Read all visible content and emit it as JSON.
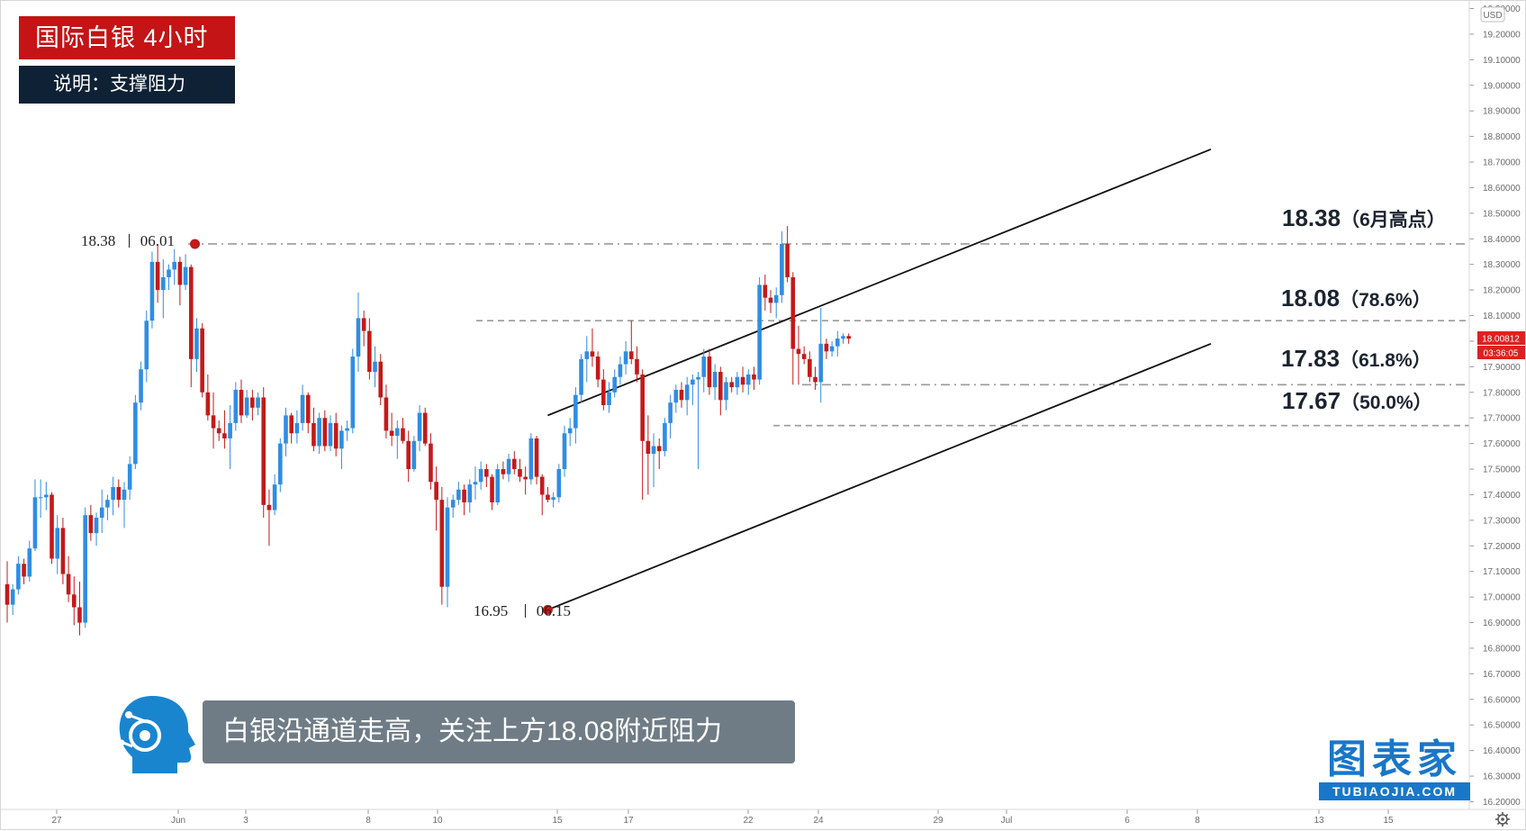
{
  "header": {
    "title": "国际白银  4小时",
    "subtitle": "说明：支撑阻力"
  },
  "caption": "白银沿通道走高，关注上方18.08附近阻力",
  "brand": {
    "cn": "图表家",
    "en": "TUBIAOJIA.COM",
    "color": "#1877c9"
  },
  "annotations": {
    "high": {
      "value": "18.38",
      "note": "（6月高点）"
    },
    "fib786": {
      "value": "18.08",
      "note": "（78.6%）"
    },
    "fib618": {
      "value": "17.83",
      "note": "（61.8%）"
    },
    "fib50": {
      "value": "17.67",
      "note": "（50.0%）"
    },
    "june_high_point": {
      "price": "18.38",
      "date": "06.01"
    },
    "june_low_point": {
      "price": "16.95",
      "date": "06.15"
    }
  },
  "price_axis": {
    "currency": "USD",
    "ticks": [
      "19.30000",
      "19.20000",
      "19.10000",
      "19.00000",
      "18.90000",
      "18.80000",
      "18.70000",
      "18.60000",
      "18.50000",
      "18.40000",
      "18.30000",
      "18.20000",
      "18.10000",
      "18.00000",
      "17.90000",
      "17.80000",
      "17.70000",
      "17.60000",
      "17.50000",
      "17.40000",
      "17.30000",
      "17.20000",
      "17.10000",
      "17.00000",
      "16.90000",
      "16.80000",
      "16.70000",
      "16.60000",
      "16.50000",
      "16.40000",
      "16.30000",
      "16.20000"
    ],
    "current_price": "18.00812",
    "countdown": "03:36:05"
  },
  "time_axis": {
    "ticks": [
      "27",
      "Jun",
      "3",
      "8",
      "10",
      "15",
      "17",
      "22",
      "24",
      "29",
      "Jul",
      "6",
      "8",
      "13",
      "15"
    ]
  },
  "colors": {
    "up": "#2f8de4",
    "down": "#c4191a",
    "current": "#e02020"
  },
  "chart_data": {
    "type": "candlestick",
    "title": "国际白银  4小时",
    "ylim": [
      16.17,
      19.33
    ],
    "levels": [
      {
        "label": "18.38（6月高点）",
        "value": 18.38,
        "style": "dash-dot"
      },
      {
        "label": "18.08（78.6%）",
        "value": 18.08,
        "style": "dashed"
      },
      {
        "label": "17.83（61.8%）",
        "value": 17.83,
        "style": "dash-dot"
      },
      {
        "label": "17.67（50.0%）",
        "value": 17.67,
        "style": "dashed"
      }
    ],
    "channel": {
      "lower": [
        {
          "bar": 97,
          "price": 16.95
        },
        {
          "bar": 216,
          "price": 17.99
        }
      ],
      "upper": [
        {
          "bar": 97,
          "price": 17.71
        },
        {
          "bar": 216,
          "price": 18.75
        }
      ]
    },
    "candles": [
      [
        17.05,
        17.14,
        16.9,
        16.97
      ],
      [
        16.97,
        17.05,
        16.93,
        17.03
      ],
      [
        17.03,
        17.16,
        17.01,
        17.13
      ],
      [
        17.13,
        17.15,
        17.05,
        17.08
      ],
      [
        17.08,
        17.22,
        17.06,
        17.19
      ],
      [
        17.19,
        17.46,
        17.18,
        17.39
      ],
      [
        17.39,
        17.46,
        17.31,
        17.39
      ],
      [
        17.39,
        17.45,
        17.34,
        17.4
      ],
      [
        17.4,
        17.41,
        17.13,
        17.15
      ],
      [
        17.15,
        17.32,
        17.09,
        17.27
      ],
      [
        17.27,
        17.31,
        17.05,
        17.09
      ],
      [
        17.09,
        17.16,
        16.98,
        17.01
      ],
      [
        17.01,
        17.08,
        16.89,
        16.96
      ],
      [
        16.96,
        17.06,
        16.85,
        16.9
      ],
      [
        16.9,
        17.35,
        16.88,
        17.32
      ],
      [
        17.32,
        17.36,
        17.22,
        17.25
      ],
      [
        17.25,
        17.33,
        17.2,
        17.31
      ],
      [
        17.31,
        17.42,
        17.25,
        17.35
      ],
      [
        17.35,
        17.4,
        17.3,
        17.38
      ],
      [
        17.38,
        17.47,
        17.32,
        17.43
      ],
      [
        17.43,
        17.46,
        17.35,
        17.38
      ],
      [
        17.38,
        17.45,
        17.27,
        17.42
      ],
      [
        17.42,
        17.55,
        17.38,
        17.52
      ],
      [
        17.52,
        17.79,
        17.5,
        17.76
      ],
      [
        17.76,
        17.92,
        17.73,
        17.89
      ],
      [
        17.89,
        18.12,
        17.84,
        18.08
      ],
      [
        18.08,
        18.35,
        18.05,
        18.31
      ],
      [
        18.31,
        18.38,
        18.15,
        18.2
      ],
      [
        18.2,
        18.32,
        18.09,
        18.25
      ],
      [
        18.25,
        18.3,
        18.2,
        18.28
      ],
      [
        18.28,
        18.36,
        18.22,
        18.31
      ],
      [
        18.31,
        18.33,
        18.14,
        18.22
      ],
      [
        18.22,
        18.34,
        18.2,
        18.29
      ],
      [
        18.29,
        18.3,
        17.82,
        17.93
      ],
      [
        17.93,
        18.09,
        17.88,
        18.05
      ],
      [
        18.05,
        18.07,
        17.78,
        17.8
      ],
      [
        17.8,
        17.87,
        17.69,
        17.71
      ],
      [
        17.71,
        17.8,
        17.58,
        17.66
      ],
      [
        17.66,
        17.69,
        17.61,
        17.64
      ],
      [
        17.64,
        17.73,
        17.58,
        17.62
      ],
      [
        17.62,
        17.75,
        17.5,
        17.68
      ],
      [
        17.68,
        17.84,
        17.65,
        17.81
      ],
      [
        17.81,
        17.85,
        17.68,
        17.71
      ],
      [
        17.71,
        17.81,
        17.7,
        17.78
      ],
      [
        17.78,
        17.81,
        17.69,
        17.74
      ],
      [
        17.74,
        17.8,
        17.71,
        17.78
      ],
      [
        17.78,
        17.82,
        17.31,
        17.36
      ],
      [
        17.36,
        17.42,
        17.2,
        17.34
      ],
      [
        17.34,
        17.48,
        17.32,
        17.44
      ],
      [
        17.44,
        17.62,
        17.41,
        17.6
      ],
      [
        17.6,
        17.74,
        17.55,
        17.71
      ],
      [
        17.71,
        17.72,
        17.6,
        17.64
      ],
      [
        17.64,
        17.73,
        17.6,
        17.68
      ],
      [
        17.68,
        17.83,
        17.65,
        17.79
      ],
      [
        17.79,
        17.8,
        17.64,
        17.68
      ],
      [
        17.68,
        17.74,
        17.57,
        17.59
      ],
      [
        17.59,
        17.72,
        17.56,
        17.7
      ],
      [
        17.7,
        17.73,
        17.57,
        17.59
      ],
      [
        17.59,
        17.71,
        17.57,
        17.68
      ],
      [
        17.68,
        17.72,
        17.55,
        17.58
      ],
      [
        17.58,
        17.67,
        17.5,
        17.65
      ],
      [
        17.65,
        17.69,
        17.61,
        17.66
      ],
      [
        17.66,
        17.97,
        17.64,
        17.94
      ],
      [
        17.94,
        18.19,
        17.88,
        18.09
      ],
      [
        18.09,
        18.12,
        17.98,
        18.04
      ],
      [
        18.04,
        18.09,
        17.85,
        17.88
      ],
      [
        17.88,
        17.98,
        17.82,
        17.92
      ],
      [
        17.92,
        17.95,
        17.75,
        17.78
      ],
      [
        17.78,
        17.83,
        17.62,
        17.65
      ],
      [
        17.65,
        17.72,
        17.59,
        17.63
      ],
      [
        17.63,
        17.69,
        17.54,
        17.66
      ],
      [
        17.66,
        17.7,
        17.6,
        17.61
      ],
      [
        17.61,
        17.65,
        17.45,
        17.5
      ],
      [
        17.5,
        17.63,
        17.49,
        17.61
      ],
      [
        17.61,
        17.75,
        17.57,
        17.72
      ],
      [
        17.72,
        17.74,
        17.59,
        17.6
      ],
      [
        17.6,
        17.64,
        17.42,
        17.45
      ],
      [
        17.45,
        17.51,
        17.26,
        17.38
      ],
      [
        17.38,
        17.43,
        16.97,
        17.04
      ],
      [
        17.04,
        17.39,
        16.96,
        17.35
      ],
      [
        17.35,
        17.4,
        17.31,
        17.38
      ],
      [
        17.38,
        17.45,
        17.36,
        17.42
      ],
      [
        17.42,
        17.44,
        17.32,
        17.37
      ],
      [
        17.37,
        17.46,
        17.33,
        17.44
      ],
      [
        17.44,
        17.51,
        17.38,
        17.45
      ],
      [
        17.45,
        17.53,
        17.42,
        17.5
      ],
      [
        17.5,
        17.52,
        17.43,
        17.47
      ],
      [
        17.47,
        17.48,
        17.34,
        17.37
      ],
      [
        17.37,
        17.52,
        17.36,
        17.5
      ],
      [
        17.5,
        17.53,
        17.46,
        17.48
      ],
      [
        17.48,
        17.56,
        17.45,
        17.54
      ],
      [
        17.54,
        17.57,
        17.48,
        17.5
      ],
      [
        17.5,
        17.54,
        17.45,
        17.47
      ],
      [
        17.47,
        17.51,
        17.4,
        17.46
      ],
      [
        17.46,
        17.64,
        17.44,
        17.62
      ],
      [
        17.62,
        17.63,
        17.44,
        17.47
      ],
      [
        17.47,
        17.48,
        17.32,
        17.4
      ],
      [
        17.4,
        17.43,
        17.37,
        17.38
      ],
      [
        17.38,
        17.41,
        17.35,
        17.39
      ],
      [
        17.39,
        17.52,
        17.37,
        17.5
      ],
      [
        17.5,
        17.67,
        17.47,
        17.64
      ],
      [
        17.64,
        17.7,
        17.59,
        17.66
      ],
      [
        17.66,
        17.82,
        17.6,
        17.79
      ],
      [
        17.79,
        17.95,
        17.76,
        17.93
      ],
      [
        17.93,
        18.02,
        17.84,
        17.96
      ],
      [
        17.96,
        18.05,
        17.9,
        17.94
      ],
      [
        17.94,
        17.96,
        17.82,
        17.85
      ],
      [
        17.85,
        17.89,
        17.73,
        17.75
      ],
      [
        17.75,
        17.84,
        17.72,
        17.8
      ],
      [
        17.8,
        17.89,
        17.78,
        17.86
      ],
      [
        17.86,
        17.94,
        17.83,
        17.91
      ],
      [
        17.91,
        18.0,
        17.87,
        17.96
      ],
      [
        17.96,
        18.08,
        17.91,
        17.93
      ],
      [
        17.93,
        17.98,
        17.84,
        17.87
      ],
      [
        17.87,
        17.89,
        17.38,
        17.61
      ],
      [
        17.61,
        17.71,
        17.4,
        17.56
      ],
      [
        17.56,
        17.64,
        17.43,
        17.59
      ],
      [
        17.59,
        17.62,
        17.5,
        17.57
      ],
      [
        17.57,
        17.7,
        17.55,
        17.68
      ],
      [
        17.68,
        17.79,
        17.62,
        17.76
      ],
      [
        17.76,
        17.83,
        17.72,
        17.81
      ],
      [
        17.81,
        17.84,
        17.74,
        17.77
      ],
      [
        17.77,
        17.86,
        17.71,
        17.83
      ],
      [
        17.83,
        17.87,
        17.75,
        17.85
      ],
      [
        17.85,
        17.88,
        17.5,
        17.86
      ],
      [
        17.86,
        17.97,
        17.8,
        17.94
      ],
      [
        17.94,
        17.97,
        17.79,
        17.82
      ],
      [
        17.82,
        17.91,
        17.77,
        17.88
      ],
      [
        17.88,
        17.9,
        17.71,
        17.77
      ],
      [
        17.77,
        17.86,
        17.73,
        17.84
      ],
      [
        17.84,
        17.86,
        17.8,
        17.82
      ],
      [
        17.82,
        17.88,
        17.79,
        17.86
      ],
      [
        17.86,
        17.9,
        17.8,
        17.83
      ],
      [
        17.83,
        17.89,
        17.79,
        17.87
      ],
      [
        17.87,
        17.9,
        17.81,
        17.85
      ],
      [
        17.85,
        18.25,
        17.83,
        18.22
      ],
      [
        18.22,
        18.26,
        18.12,
        18.17
      ],
      [
        18.17,
        18.2,
        18.11,
        18.15
      ],
      [
        18.15,
        18.21,
        18.09,
        18.18
      ],
      [
        18.18,
        18.43,
        18.15,
        18.38
      ],
      [
        18.38,
        18.45,
        18.23,
        18.25
      ],
      [
        18.25,
        18.27,
        17.83,
        17.97
      ],
      [
        17.97,
        18.06,
        17.83,
        17.95
      ],
      [
        17.95,
        17.98,
        17.91,
        17.93
      ],
      [
        17.93,
        17.96,
        17.84,
        17.86
      ],
      [
        17.86,
        17.9,
        17.81,
        17.84
      ],
      [
        17.84,
        18.13,
        17.76,
        17.99
      ],
      [
        17.99,
        18.01,
        17.93,
        17.96
      ],
      [
        17.96,
        18.0,
        17.94,
        17.98
      ],
      [
        17.98,
        18.04,
        17.94,
        18.01
      ],
      [
        18.01,
        18.03,
        17.99,
        18.02
      ],
      [
        18.02,
        18.03,
        17.99,
        18.01
      ]
    ]
  }
}
